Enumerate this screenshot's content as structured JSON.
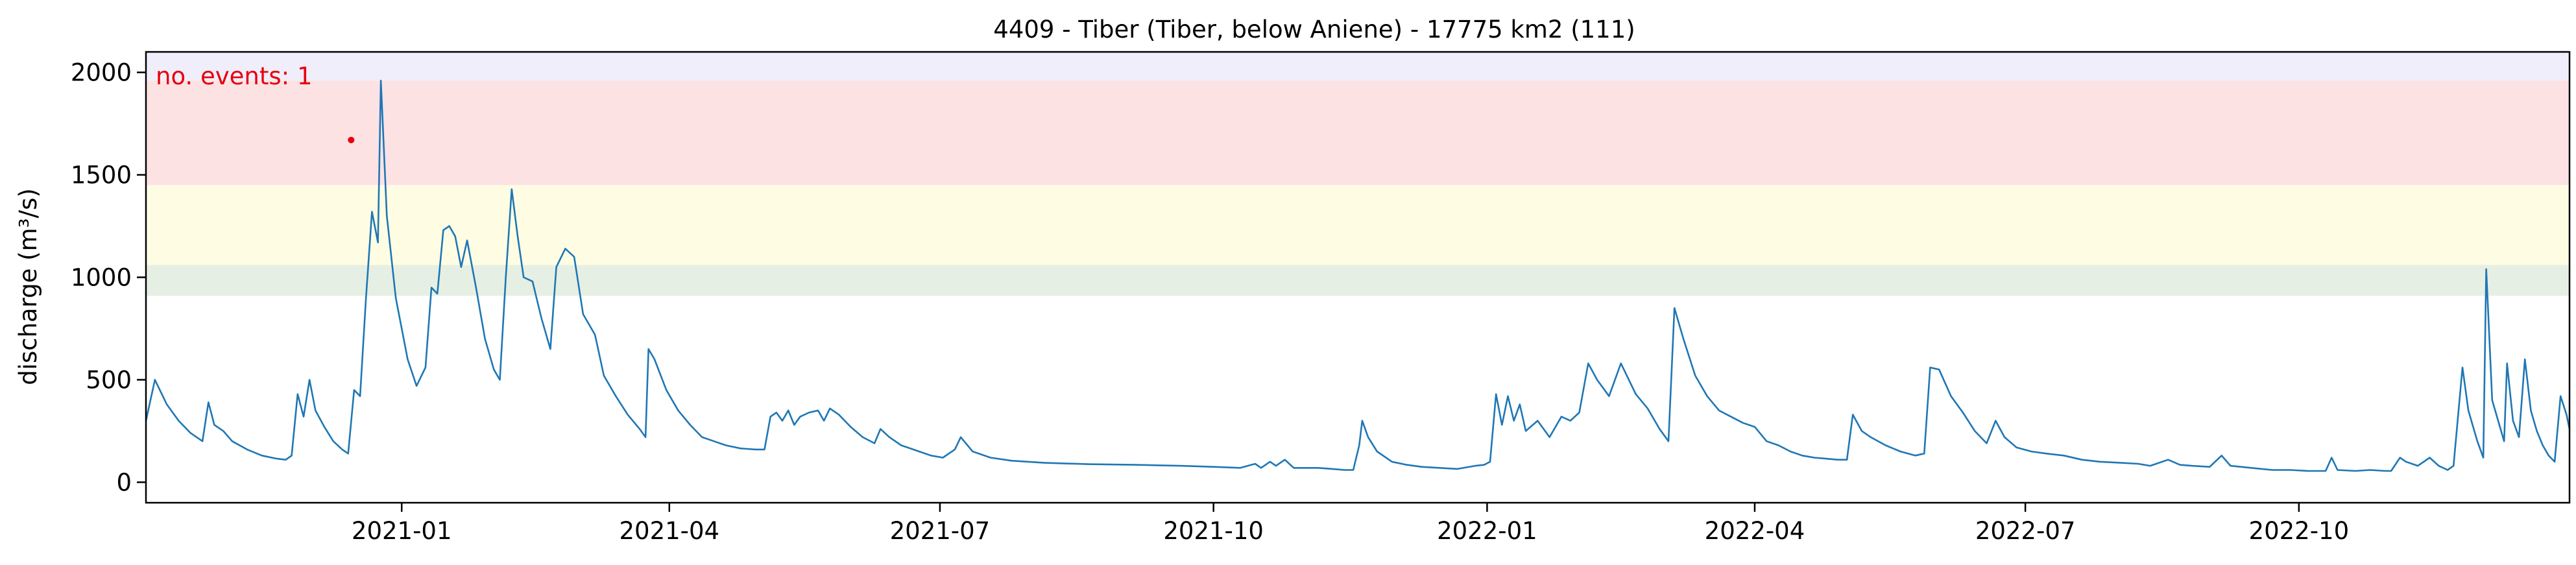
{
  "chart_data": {
    "type": "line",
    "title": "4409 - Tiber (Tiber, below Aniene) - 17775 km2 (111)",
    "xlabel": "",
    "ylabel": "discharge (m³/s)",
    "xlim": [
      "2020-10-07",
      "2022-12-31"
    ],
    "ylim": [
      -100,
      2100
    ],
    "x_ticks": [
      "2021-01",
      "2021-04",
      "2021-07",
      "2021-10",
      "2022-01",
      "2022-04",
      "2022-07",
      "2022-10"
    ],
    "y_ticks": [
      0,
      500,
      1000,
      1500,
      2000
    ],
    "grid": false,
    "annotation": "no. events: 1",
    "thresholds": [
      {
        "from": 910,
        "to": 1060,
        "color": "#e6efe3"
      },
      {
        "from": 1060,
        "to": 1450,
        "color": "#fefde4"
      },
      {
        "from": 1450,
        "to": 1960,
        "color": "#fde2e4"
      },
      {
        "from": 1960,
        "to": 2100,
        "color": "#f1eefb"
      }
    ],
    "events": [
      {
        "x": "2020-12-15",
        "y": 1670
      }
    ],
    "series": [
      {
        "color": "#1f77b4",
        "points": [
          [
            "2020-10-07",
            300
          ],
          [
            "2020-10-10",
            500
          ],
          [
            "2020-10-14",
            380
          ],
          [
            "2020-10-18",
            300
          ],
          [
            "2020-10-22",
            240
          ],
          [
            "2020-10-26",
            200
          ],
          [
            "2020-10-28",
            390
          ],
          [
            "2020-10-30",
            280
          ],
          [
            "2020-11-02",
            250
          ],
          [
            "2020-11-05",
            200
          ],
          [
            "2020-11-10",
            160
          ],
          [
            "2020-11-15",
            130
          ],
          [
            "2020-11-20",
            115
          ],
          [
            "2020-11-23",
            110
          ],
          [
            "2020-11-25",
            130
          ],
          [
            "2020-11-27",
            430
          ],
          [
            "2020-11-29",
            320
          ],
          [
            "2020-12-01",
            500
          ],
          [
            "2020-12-03",
            350
          ],
          [
            "2020-12-06",
            270
          ],
          [
            "2020-12-09",
            200
          ],
          [
            "2020-12-12",
            160
          ],
          [
            "2020-12-14",
            140
          ],
          [
            "2020-12-16",
            450
          ],
          [
            "2020-12-18",
            420
          ],
          [
            "2020-12-20",
            900
          ],
          [
            "2020-12-22",
            1320
          ],
          [
            "2020-12-24",
            1170
          ],
          [
            "2020-12-25",
            1960
          ],
          [
            "2020-12-27",
            1300
          ],
          [
            "2020-12-30",
            900
          ],
          [
            "2021-01-03",
            600
          ],
          [
            "2021-01-06",
            470
          ],
          [
            "2021-01-09",
            560
          ],
          [
            "2021-01-11",
            950
          ],
          [
            "2021-01-13",
            920
          ],
          [
            "2021-01-15",
            1230
          ],
          [
            "2021-01-17",
            1250
          ],
          [
            "2021-01-19",
            1200
          ],
          [
            "2021-01-21",
            1050
          ],
          [
            "2021-01-23",
            1180
          ],
          [
            "2021-01-26",
            950
          ],
          [
            "2021-01-29",
            700
          ],
          [
            "2021-02-01",
            550
          ],
          [
            "2021-02-03",
            500
          ],
          [
            "2021-02-05",
            1000
          ],
          [
            "2021-02-07",
            1430
          ],
          [
            "2021-02-09",
            1200
          ],
          [
            "2021-02-11",
            1000
          ],
          [
            "2021-02-14",
            980
          ],
          [
            "2021-02-17",
            800
          ],
          [
            "2021-02-20",
            650
          ],
          [
            "2021-02-22",
            1050
          ],
          [
            "2021-02-25",
            1140
          ],
          [
            "2021-02-28",
            1100
          ],
          [
            "2021-03-03",
            820
          ],
          [
            "2021-03-07",
            720
          ],
          [
            "2021-03-10",
            520
          ],
          [
            "2021-03-14",
            420
          ],
          [
            "2021-03-18",
            330
          ],
          [
            "2021-03-22",
            260
          ],
          [
            "2021-03-24",
            220
          ],
          [
            "2021-03-25",
            650
          ],
          [
            "2021-03-27",
            600
          ],
          [
            "2021-03-31",
            450
          ],
          [
            "2021-04-04",
            350
          ],
          [
            "2021-04-08",
            280
          ],
          [
            "2021-04-12",
            220
          ],
          [
            "2021-04-16",
            200
          ],
          [
            "2021-04-20",
            180
          ],
          [
            "2021-04-25",
            165
          ],
          [
            "2021-04-30",
            160
          ],
          [
            "2021-05-03",
            160
          ],
          [
            "2021-05-05",
            320
          ],
          [
            "2021-05-07",
            340
          ],
          [
            "2021-05-09",
            300
          ],
          [
            "2021-05-11",
            350
          ],
          [
            "2021-05-13",
            280
          ],
          [
            "2021-05-15",
            320
          ],
          [
            "2021-05-18",
            340
          ],
          [
            "2021-05-21",
            350
          ],
          [
            "2021-05-23",
            300
          ],
          [
            "2021-05-25",
            360
          ],
          [
            "2021-05-28",
            330
          ],
          [
            "2021-06-01",
            270
          ],
          [
            "2021-06-05",
            220
          ],
          [
            "2021-06-09",
            190
          ],
          [
            "2021-06-11",
            260
          ],
          [
            "2021-06-14",
            220
          ],
          [
            "2021-06-18",
            180
          ],
          [
            "2021-06-24",
            150
          ],
          [
            "2021-06-28",
            130
          ],
          [
            "2021-07-02",
            120
          ],
          [
            "2021-07-06",
            160
          ],
          [
            "2021-07-08",
            220
          ],
          [
            "2021-07-12",
            150
          ],
          [
            "2021-07-18",
            120
          ],
          [
            "2021-07-25",
            105
          ],
          [
            "2021-08-05",
            95
          ],
          [
            "2021-08-20",
            88
          ],
          [
            "2021-09-05",
            85
          ],
          [
            "2021-09-20",
            80
          ],
          [
            "2021-10-01",
            75
          ],
          [
            "2021-10-10",
            70
          ],
          [
            "2021-10-15",
            90
          ],
          [
            "2021-10-17",
            70
          ],
          [
            "2021-10-20",
            100
          ],
          [
            "2021-10-22",
            80
          ],
          [
            "2021-10-25",
            110
          ],
          [
            "2021-10-28",
            70
          ],
          [
            "2021-11-01",
            70
          ],
          [
            "2021-11-05",
            70
          ],
          [
            "2021-11-10",
            65
          ],
          [
            "2021-11-14",
            60
          ],
          [
            "2021-11-17",
            60
          ],
          [
            "2021-11-19",
            180
          ],
          [
            "2021-11-20",
            300
          ],
          [
            "2021-11-22",
            220
          ],
          [
            "2021-11-25",
            150
          ],
          [
            "2021-11-30",
            100
          ],
          [
            "2021-12-05",
            85
          ],
          [
            "2021-12-10",
            75
          ],
          [
            "2021-12-16",
            70
          ],
          [
            "2021-12-22",
            65
          ],
          [
            "2021-12-28",
            80
          ],
          [
            "2021-12-31",
            85
          ],
          [
            "2022-01-02",
            100
          ],
          [
            "2022-01-04",
            430
          ],
          [
            "2022-01-06",
            280
          ],
          [
            "2022-01-08",
            420
          ],
          [
            "2022-01-10",
            300
          ],
          [
            "2022-01-12",
            380
          ],
          [
            "2022-01-14",
            250
          ],
          [
            "2022-01-18",
            300
          ],
          [
            "2022-01-22",
            220
          ],
          [
            "2022-01-26",
            320
          ],
          [
            "2022-01-29",
            300
          ],
          [
            "2022-02-01",
            340
          ],
          [
            "2022-02-04",
            580
          ],
          [
            "2022-02-07",
            500
          ],
          [
            "2022-02-11",
            420
          ],
          [
            "2022-02-15",
            580
          ],
          [
            "2022-02-20",
            430
          ],
          [
            "2022-02-24",
            360
          ],
          [
            "2022-02-28",
            260
          ],
          [
            "2022-03-03",
            200
          ],
          [
            "2022-03-05",
            850
          ],
          [
            "2022-03-08",
            700
          ],
          [
            "2022-03-12",
            520
          ],
          [
            "2022-03-16",
            420
          ],
          [
            "2022-03-20",
            350
          ],
          [
            "2022-03-24",
            320
          ],
          [
            "2022-03-28",
            290
          ],
          [
            "2022-04-01",
            270
          ],
          [
            "2022-04-05",
            200
          ],
          [
            "2022-04-09",
            180
          ],
          [
            "2022-04-13",
            150
          ],
          [
            "2022-04-17",
            130
          ],
          [
            "2022-04-21",
            120
          ],
          [
            "2022-04-25",
            115
          ],
          [
            "2022-04-29",
            110
          ],
          [
            "2022-05-02",
            110
          ],
          [
            "2022-05-04",
            330
          ],
          [
            "2022-05-07",
            250
          ],
          [
            "2022-05-10",
            220
          ],
          [
            "2022-05-15",
            180
          ],
          [
            "2022-05-20",
            150
          ],
          [
            "2022-05-25",
            130
          ],
          [
            "2022-05-28",
            140
          ],
          [
            "2022-05-30",
            560
          ],
          [
            "2022-06-02",
            550
          ],
          [
            "2022-06-06",
            420
          ],
          [
            "2022-06-10",
            340
          ],
          [
            "2022-06-14",
            250
          ],
          [
            "2022-06-18",
            190
          ],
          [
            "2022-06-21",
            300
          ],
          [
            "2022-06-24",
            220
          ],
          [
            "2022-06-28",
            170
          ],
          [
            "2022-07-03",
            150
          ],
          [
            "2022-07-08",
            140
          ],
          [
            "2022-07-14",
            130
          ],
          [
            "2022-07-20",
            110
          ],
          [
            "2022-07-26",
            100
          ],
          [
            "2022-08-02",
            95
          ],
          [
            "2022-08-08",
            90
          ],
          [
            "2022-08-12",
            80
          ],
          [
            "2022-08-18",
            110
          ],
          [
            "2022-08-22",
            85
          ],
          [
            "2022-08-26",
            80
          ],
          [
            "2022-09-01",
            75
          ],
          [
            "2022-09-05",
            130
          ],
          [
            "2022-09-08",
            80
          ],
          [
            "2022-09-15",
            70
          ],
          [
            "2022-09-22",
            60
          ],
          [
            "2022-09-28",
            60
          ],
          [
            "2022-10-04",
            55
          ],
          [
            "2022-10-10",
            55
          ],
          [
            "2022-10-12",
            120
          ],
          [
            "2022-10-14",
            60
          ],
          [
            "2022-10-20",
            55
          ],
          [
            "2022-10-25",
            60
          ],
          [
            "2022-10-30",
            55
          ],
          [
            "2022-11-01",
            55
          ],
          [
            "2022-11-04",
            120
          ],
          [
            "2022-11-06",
            100
          ],
          [
            "2022-11-10",
            80
          ],
          [
            "2022-11-14",
            120
          ],
          [
            "2022-11-17",
            80
          ],
          [
            "2022-11-20",
            60
          ],
          [
            "2022-11-22",
            80
          ],
          [
            "2022-11-25",
            560
          ],
          [
            "2022-11-27",
            350
          ],
          [
            "2022-11-30",
            200
          ],
          [
            "2022-12-02",
            120
          ],
          [
            "2022-12-03",
            1040
          ],
          [
            "2022-12-05",
            400
          ],
          [
            "2022-12-07",
            300
          ],
          [
            "2022-12-09",
            200
          ],
          [
            "2022-12-10",
            580
          ],
          [
            "2022-12-12",
            300
          ],
          [
            "2022-12-14",
            220
          ],
          [
            "2022-12-16",
            600
          ],
          [
            "2022-12-18",
            350
          ],
          [
            "2022-12-20",
            250
          ],
          [
            "2022-12-22",
            180
          ],
          [
            "2022-12-24",
            130
          ],
          [
            "2022-12-26",
            100
          ],
          [
            "2022-12-28",
            420
          ],
          [
            "2022-12-30",
            330
          ],
          [
            "2022-12-31",
            260
          ]
        ]
      }
    ]
  }
}
